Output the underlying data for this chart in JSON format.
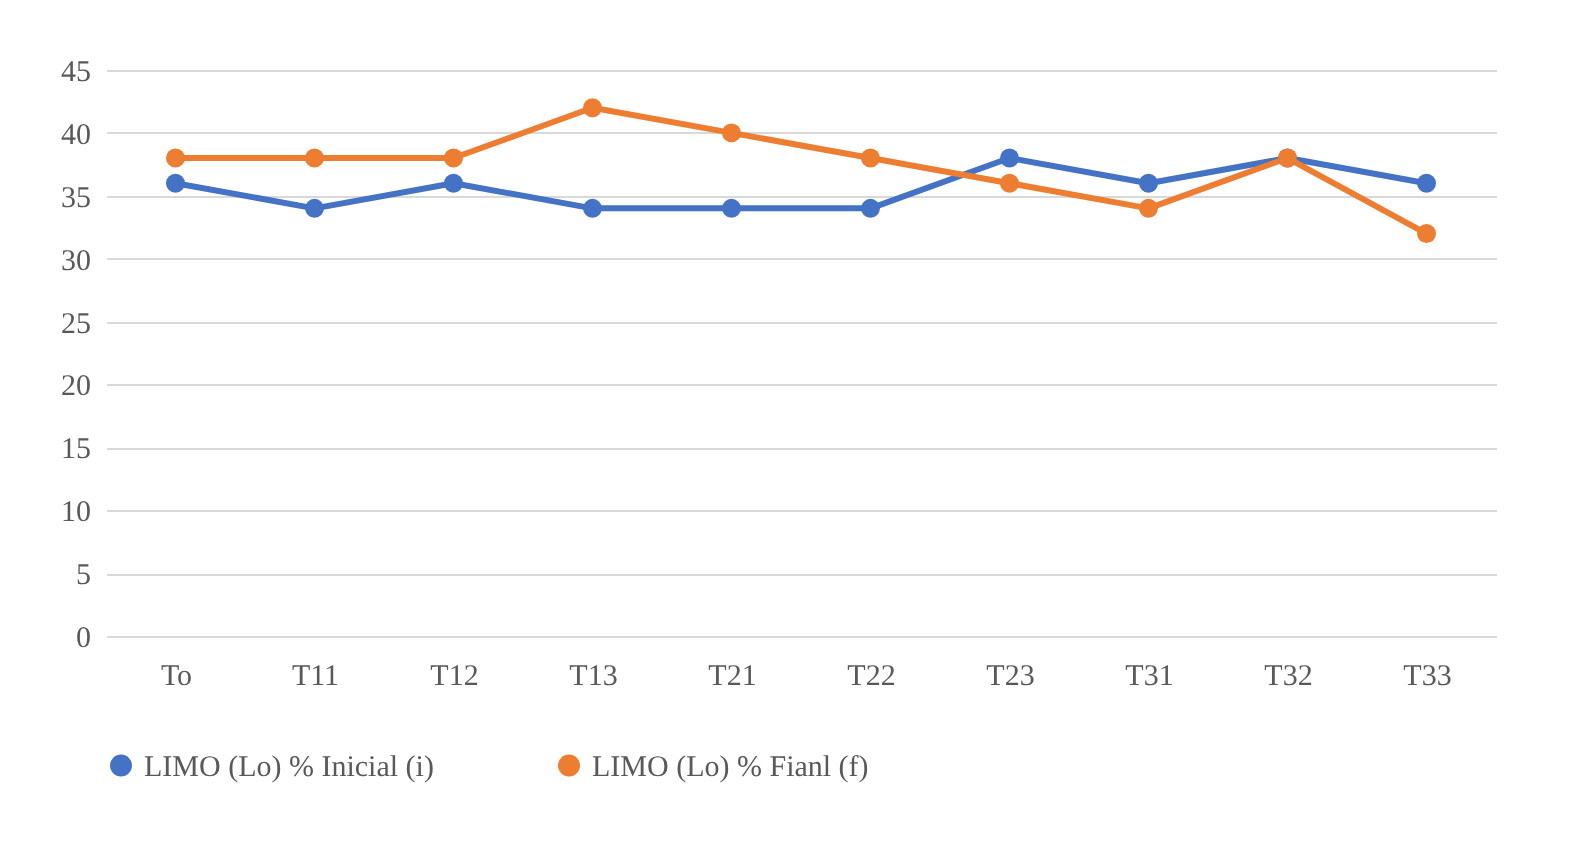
{
  "chart_data": {
    "type": "line",
    "categories": [
      "To",
      "T11",
      "T12",
      "T13",
      "T21",
      "T22",
      "T23",
      "T31",
      "T32",
      "T33"
    ],
    "series": [
      {
        "name": "LIMO (Lo) % Inicial (i)",
        "color": "#4472c4",
        "values": [
          36,
          34,
          36,
          34,
          34,
          34,
          38,
          36,
          38,
          36
        ]
      },
      {
        "name": "LIMO (Lo) % Fianl (f)",
        "color": "#ed7d31",
        "values": [
          38,
          38,
          38,
          42,
          40,
          38,
          36,
          34,
          38,
          32
        ]
      }
    ],
    "ylim": [
      0,
      45
    ],
    "yticks": [
      0,
      5,
      10,
      15,
      20,
      25,
      30,
      35,
      40,
      45
    ],
    "grid": "y",
    "legend": "bottom",
    "marker": "circle"
  }
}
